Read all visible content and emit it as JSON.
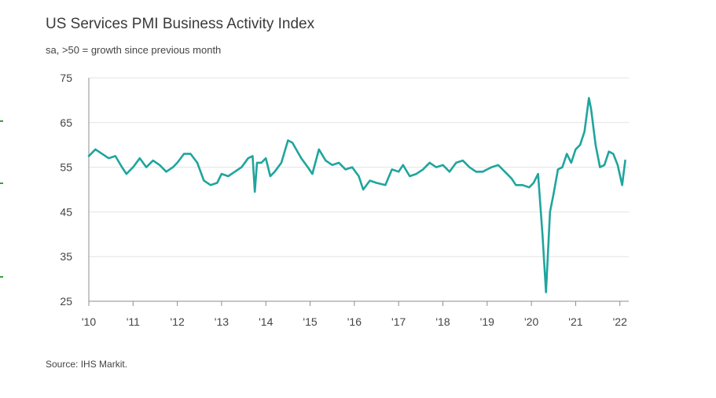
{
  "title": "US Services PMI Business Activity Index",
  "subtitle": "sa, >50 = growth since previous month",
  "source": "Source: IHS Markit.",
  "colors": {
    "line": "#1fa59d",
    "grid": "#e3e3e3",
    "axis": "#8c8c8c",
    "edge_marks": "#3c9b4a"
  },
  "chart_data": {
    "type": "line",
    "title": "US Services PMI Business Activity Index",
    "subtitle": "sa, >50 = growth since previous month",
    "ylim": [
      25,
      75
    ],
    "yticks": [
      25,
      35,
      45,
      55,
      65,
      75
    ],
    "ytick_labels": [
      "25",
      "35",
      "45",
      "55",
      "65",
      "75"
    ],
    "xlim": [
      2010.0,
      2022.2
    ],
    "xticks": [
      2010,
      2011,
      2012,
      2013,
      2014,
      2015,
      2016,
      2017,
      2018,
      2019,
      2020,
      2021,
      2022
    ],
    "xtick_labels": [
      "'10",
      "'11",
      "'12",
      "'13",
      "'14",
      "'15",
      "'16",
      "'17",
      "'18",
      "'19",
      "'20",
      "'21",
      "'22"
    ],
    "grid": "horizontal",
    "legend": "none",
    "series": [
      {
        "x": [
          2010.0,
          2010.15,
          2010.3,
          2010.45,
          2010.6,
          2010.75,
          2010.85,
          2011.0,
          2011.15,
          2011.3,
          2011.45,
          2011.6,
          2011.75,
          2011.9,
          2012.0,
          2012.15,
          2012.3,
          2012.45,
          2012.6,
          2012.75,
          2012.9,
          2013.0,
          2013.15,
          2013.3,
          2013.45,
          2013.6,
          2013.7,
          2013.75,
          2013.8,
          2013.9,
          2014.0,
          2014.1,
          2014.2,
          2014.35,
          2014.5,
          2014.6,
          2014.8,
          2014.95,
          2015.05,
          2015.2,
          2015.35,
          2015.5,
          2015.65,
          2015.8,
          2015.95,
          2016.1,
          2016.2,
          2016.35,
          2016.5,
          2016.7,
          2016.85,
          2017.0,
          2017.1,
          2017.25,
          2017.4,
          2017.55,
          2017.7,
          2017.85,
          2018.0,
          2018.15,
          2018.3,
          2018.45,
          2018.6,
          2018.75,
          2018.9,
          2019.0,
          2019.1,
          2019.25,
          2019.4,
          2019.55,
          2019.65,
          2019.8,
          2019.95,
          2020.05,
          2020.15,
          2020.25,
          2020.33,
          2020.42,
          2020.5,
          2020.6,
          2020.7,
          2020.8,
          2020.9,
          2021.0,
          2021.1,
          2021.2,
          2021.3,
          2021.35,
          2021.45,
          2021.55,
          2021.65,
          2021.75,
          2021.85,
          2021.95,
          2022.05,
          2022.12
        ],
        "values": [
          57.5,
          59,
          58,
          57,
          57.5,
          55,
          53.5,
          55,
          57,
          55,
          56.5,
          55.5,
          54,
          55,
          56,
          58,
          58,
          56,
          52,
          51,
          51.5,
          53.5,
          53,
          54,
          55,
          57,
          57.5,
          49.5,
          56,
          56,
          57,
          53,
          54,
          56,
          61,
          60.5,
          57,
          55,
          53.5,
          59,
          56.5,
          55.5,
          56,
          54.5,
          55,
          53,
          50,
          52,
          51.5,
          51,
          54.5,
          54,
          55.5,
          53,
          53.5,
          54.5,
          56,
          55,
          55.5,
          54,
          56,
          56.5,
          55,
          54,
          54,
          54.5,
          55,
          55.5,
          54,
          52.5,
          51,
          51,
          50.5,
          51.5,
          53.5,
          40,
          27,
          45,
          49,
          54.5,
          55,
          58,
          56,
          59,
          60,
          63,
          70.5,
          68,
          60,
          55,
          55.5,
          58.5,
          58,
          55.5,
          51,
          56.5
        ]
      }
    ]
  }
}
